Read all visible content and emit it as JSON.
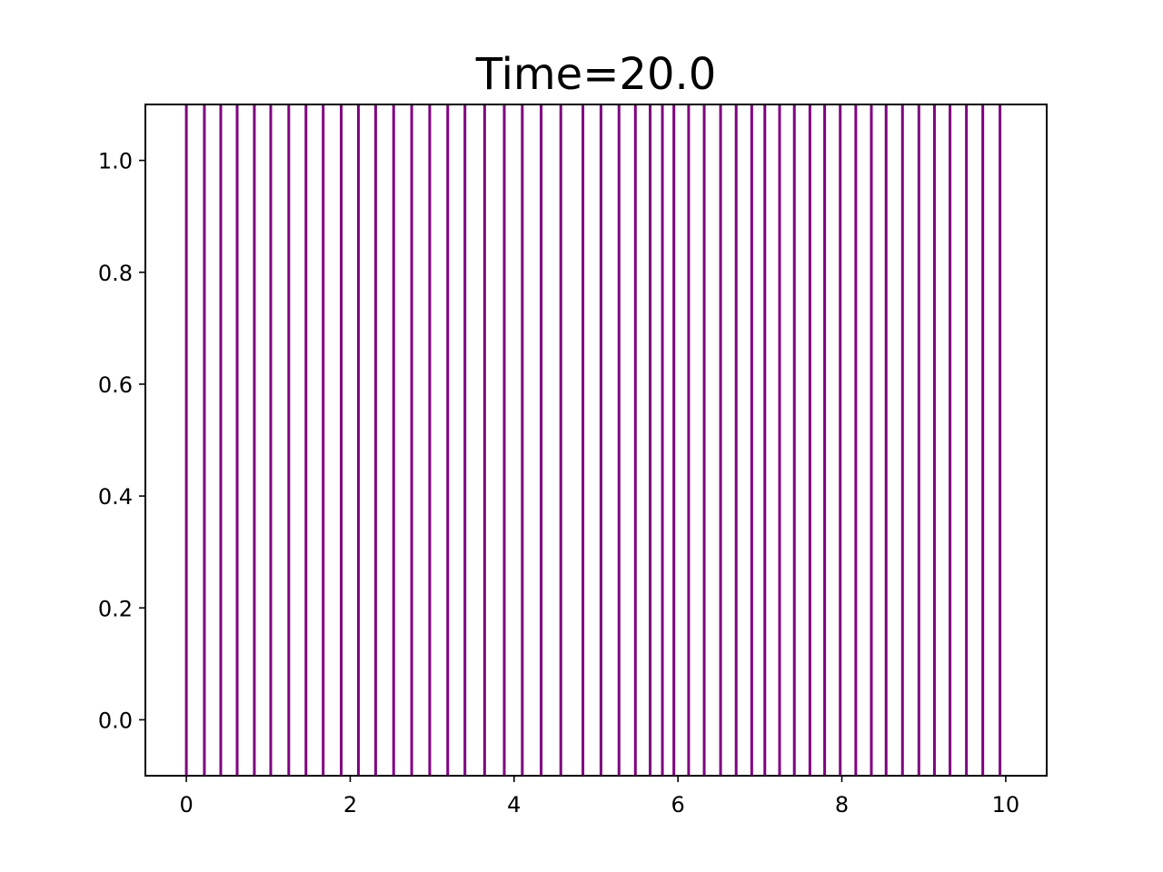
{
  "chart_data": {
    "type": "event",
    "title": "Time=20.0",
    "xlabel": "",
    "ylabel": "",
    "xlim": [
      -0.5,
      10.5
    ],
    "ylim": [
      -0.1,
      1.1
    ],
    "x_ticks": [
      0,
      2,
      4,
      6,
      8,
      10
    ],
    "x_tick_labels": [
      "0",
      "2",
      "4",
      "6",
      "8",
      "10"
    ],
    "y_ticks": [
      0.0,
      0.2,
      0.4,
      0.6,
      0.8,
      1.0
    ],
    "y_tick_labels": [
      "0.0",
      "0.2",
      "0.4",
      "0.6",
      "0.8",
      "1.0"
    ],
    "line_color": "#800080",
    "grid": false,
    "events": [
      0.0,
      0.22,
      0.42,
      0.62,
      0.83,
      1.03,
      1.25,
      1.46,
      1.67,
      1.89,
      2.1,
      2.31,
      2.53,
      2.75,
      2.97,
      3.19,
      3.4,
      3.64,
      3.88,
      4.1,
      4.33,
      4.57,
      4.84,
      5.06,
      5.28,
      5.48,
      5.66,
      5.81,
      5.95,
      6.13,
      6.32,
      6.52,
      6.71,
      6.9,
      7.06,
      7.24,
      7.42,
      7.61,
      7.79,
      7.98,
      8.17,
      8.36,
      8.54,
      8.74,
      8.94,
      9.13,
      9.32,
      9.52,
      9.72,
      9.93
    ]
  }
}
